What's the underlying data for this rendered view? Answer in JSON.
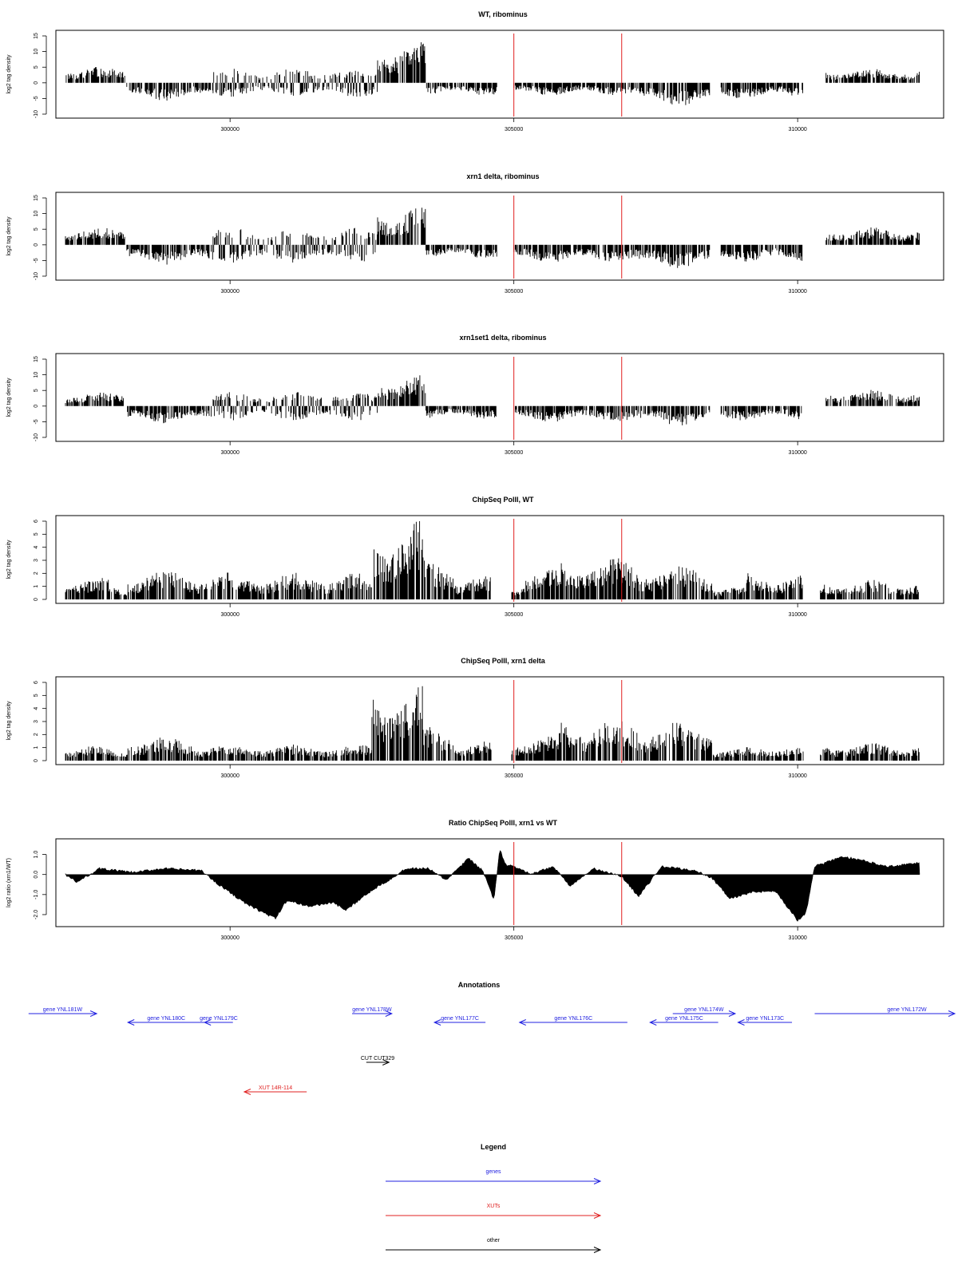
{
  "chart_data": [
    {
      "type": "bar",
      "title": "WT, ribominus",
      "ylabel": "log2 tag density",
      "xlim": [
        297100,
        312150
      ],
      "ylim": [
        -10,
        15
      ],
      "yticks": [
        "-10",
        "-5",
        "0",
        "5",
        "10",
        "15"
      ],
      "xticks": [
        {
          "value": 300000,
          "label": "300000"
        },
        {
          "value": 305000,
          "label": "305000"
        },
        {
          "value": 310000,
          "label": "310000"
        }
      ],
      "vlines": [
        305000,
        306900
      ],
      "segments": [
        {
          "start": 297100,
          "end": 298150,
          "dir": 1,
          "amp": 4.5
        },
        {
          "start": 298180,
          "end": 299700,
          "dir": -1,
          "amp": 5
        },
        {
          "start": 299700,
          "end": 302600,
          "dir": 0,
          "amp": 4
        },
        {
          "start": 302600,
          "end": 303450,
          "dir": 1,
          "amp": 12
        },
        {
          "start": 303450,
          "end": 304700,
          "dir": -1,
          "amp": 3.5
        },
        {
          "start": 305000,
          "end": 307200,
          "dir": -1,
          "amp": 3.5
        },
        {
          "start": 307200,
          "end": 308450,
          "dir": -1,
          "amp": 6.5
        },
        {
          "start": 308650,
          "end": 310100,
          "dir": -1,
          "amp": 4.5
        },
        {
          "start": 310500,
          "end": 312150,
          "dir": 1,
          "amp": 4
        }
      ]
    },
    {
      "type": "bar",
      "title": "xrn1 delta, ribominus",
      "ylabel": "log2 tag density",
      "xlim": [
        297100,
        312150
      ],
      "ylim": [
        -10,
        15
      ],
      "yticks": [
        "-10",
        "-5",
        "0",
        "5",
        "10",
        "15"
      ],
      "xticks": [
        {
          "value": 300000,
          "label": "300000"
        },
        {
          "value": 305000,
          "label": "305000"
        },
        {
          "value": 310000,
          "label": "310000"
        }
      ],
      "vlines": [
        305000,
        306900
      ],
      "segments": [
        {
          "start": 297100,
          "end": 298150,
          "dir": 1,
          "amp": 5
        },
        {
          "start": 298180,
          "end": 299700,
          "dir": -1,
          "amp": 5.5
        },
        {
          "start": 299700,
          "end": 302600,
          "dir": 0,
          "amp": 5
        },
        {
          "start": 302600,
          "end": 303450,
          "dir": 1,
          "amp": 11
        },
        {
          "start": 303450,
          "end": 304700,
          "dir": -1,
          "amp": 4
        },
        {
          "start": 305000,
          "end": 307200,
          "dir": -1,
          "amp": 5
        },
        {
          "start": 307200,
          "end": 308450,
          "dir": -1,
          "amp": 6.5
        },
        {
          "start": 308650,
          "end": 310100,
          "dir": -1,
          "amp": 5
        },
        {
          "start": 310500,
          "end": 312150,
          "dir": 1,
          "amp": 5
        }
      ]
    },
    {
      "type": "bar",
      "title": "xrn1set1 delta, ribominus",
      "ylabel": "log2 tag density",
      "xlim": [
        297100,
        312150
      ],
      "ylim": [
        -10,
        15
      ],
      "yticks": [
        "-10",
        "-5",
        "0",
        "5",
        "10",
        "15"
      ],
      "xticks": [
        {
          "value": 300000,
          "label": "300000"
        },
        {
          "value": 305000,
          "label": "305000"
        },
        {
          "value": 310000,
          "label": "310000"
        }
      ],
      "vlines": [
        305000,
        306900
      ],
      "segments": [
        {
          "start": 297100,
          "end": 298150,
          "dir": 1,
          "amp": 4
        },
        {
          "start": 298180,
          "end": 299700,
          "dir": -1,
          "amp": 5
        },
        {
          "start": 299700,
          "end": 302600,
          "dir": 0,
          "amp": 4
        },
        {
          "start": 302600,
          "end": 303450,
          "dir": 1,
          "amp": 9
        },
        {
          "start": 303450,
          "end": 304700,
          "dir": -1,
          "amp": 3.5
        },
        {
          "start": 305000,
          "end": 307200,
          "dir": -1,
          "amp": 4.5
        },
        {
          "start": 307200,
          "end": 308450,
          "dir": -1,
          "amp": 5.5
        },
        {
          "start": 308650,
          "end": 310100,
          "dir": -1,
          "amp": 4
        },
        {
          "start": 310500,
          "end": 312150,
          "dir": 1,
          "amp": 4.5
        }
      ]
    },
    {
      "type": "bar",
      "title": "ChipSeq PolII, WT",
      "ylabel": "log2 tag density",
      "xlim": [
        297100,
        312150
      ],
      "ylim": [
        0,
        6
      ],
      "yticks": [
        "0",
        "1",
        "2",
        "3",
        "4",
        "5",
        "6"
      ],
      "xticks": [
        {
          "value": 300000,
          "label": "300000"
        },
        {
          "value": 305000,
          "label": "305000"
        },
        {
          "value": 310000,
          "label": "310000"
        }
      ],
      "vlines": [
        305000,
        306900
      ],
      "segments": [
        {
          "start": 297100,
          "end": 297900,
          "dir": 1,
          "amp": 1.5
        },
        {
          "start": 297900,
          "end": 298200,
          "dir": 1,
          "amp": 0.9
        },
        {
          "start": 298200,
          "end": 299400,
          "dir": 1,
          "amp": 2
        },
        {
          "start": 299400,
          "end": 302500,
          "dir": 1,
          "amp": 1.8
        },
        {
          "start": 302500,
          "end": 303400,
          "dir": 1,
          "amp": 5.4
        },
        {
          "start": 303400,
          "end": 303950,
          "dir": 1,
          "amp": 2.8
        },
        {
          "start": 303950,
          "end": 304600,
          "dir": 1,
          "amp": 1.6
        },
        {
          "start": 304950,
          "end": 305200,
          "dir": 1,
          "amp": 1.2
        },
        {
          "start": 305200,
          "end": 305800,
          "dir": 1,
          "amp": 2
        },
        {
          "start": 305800,
          "end": 307200,
          "dir": 1,
          "amp": 2.8
        },
        {
          "start": 307200,
          "end": 308500,
          "dir": 1,
          "amp": 2.4
        },
        {
          "start": 308500,
          "end": 309100,
          "dir": 1,
          "amp": 0.9
        },
        {
          "start": 309100,
          "end": 310100,
          "dir": 1,
          "amp": 1.8
        },
        {
          "start": 310400,
          "end": 312150,
          "dir": 1,
          "amp": 1.3
        }
      ]
    },
    {
      "type": "bar",
      "title": "ChipSeq PolII, xrn1 delta",
      "ylabel": "log2 tag density",
      "xlim": [
        297100,
        312150
      ],
      "ylim": [
        0,
        6
      ],
      "yticks": [
        "0",
        "1",
        "2",
        "3",
        "4",
        "5",
        "6"
      ],
      "xticks": [
        {
          "value": 300000,
          "label": "300000"
        },
        {
          "value": 305000,
          "label": "305000"
        },
        {
          "value": 310000,
          "label": "310000"
        }
      ],
      "vlines": [
        305000,
        306900
      ],
      "segments": [
        {
          "start": 297100,
          "end": 297900,
          "dir": 1,
          "amp": 1.1
        },
        {
          "start": 297900,
          "end": 298200,
          "dir": 1,
          "amp": 0.7
        },
        {
          "start": 298200,
          "end": 299400,
          "dir": 1,
          "amp": 1.6
        },
        {
          "start": 299400,
          "end": 302500,
          "dir": 1,
          "amp": 1.1
        },
        {
          "start": 302500,
          "end": 303400,
          "dir": 1,
          "amp": 5.2
        },
        {
          "start": 303400,
          "end": 303950,
          "dir": 1,
          "amp": 2.4
        },
        {
          "start": 303950,
          "end": 304600,
          "dir": 1,
          "amp": 1.3
        },
        {
          "start": 304950,
          "end": 305800,
          "dir": 1,
          "amp": 1.6
        },
        {
          "start": 305800,
          "end": 307200,
          "dir": 1,
          "amp": 2.9
        },
        {
          "start": 307200,
          "end": 308500,
          "dir": 1,
          "amp": 2.7
        },
        {
          "start": 308500,
          "end": 309100,
          "dir": 1,
          "amp": 0.8
        },
        {
          "start": 309100,
          "end": 310100,
          "dir": 1,
          "amp": 1.1
        },
        {
          "start": 310400,
          "end": 312150,
          "dir": 1,
          "amp": 1.2
        }
      ]
    },
    {
      "type": "area",
      "title": "Ratio ChipSeq PolII, xrn1 vs WT",
      "ylabel": "log2 ratio (xrn1/WT)",
      "xlim": [
        297100,
        312150
      ],
      "ylim": [
        -2.4,
        1.5
      ],
      "yticks": [
        "-2.0",
        "-1.0",
        "0.0",
        "1.0"
      ],
      "xticks": [
        {
          "value": 300000,
          "label": "300000"
        },
        {
          "value": 305000,
          "label": "305000"
        },
        {
          "value": 310000,
          "label": "310000"
        }
      ],
      "vlines": [
        305000,
        306900
      ],
      "ratio": [
        [
          297100,
          0
        ],
        [
          297300,
          -0.4
        ],
        [
          297700,
          0.3
        ],
        [
          298300,
          0.1
        ],
        [
          298800,
          0.3
        ],
        [
          299500,
          0.2
        ],
        [
          299700,
          -0.3
        ],
        [
          300300,
          -1.5
        ],
        [
          300800,
          -2.2
        ],
        [
          301000,
          -1.3
        ],
        [
          301400,
          -1.6
        ],
        [
          301800,
          -1.4
        ],
        [
          302050,
          -1.8
        ],
        [
          302300,
          -1.2
        ],
        [
          302600,
          -0.6
        ],
        [
          302900,
          -0.1
        ],
        [
          303100,
          0.3
        ],
        [
          303500,
          0.3
        ],
        [
          303800,
          -0.3
        ],
        [
          304200,
          0.8
        ],
        [
          304450,
          0.2
        ],
        [
          304650,
          -1.3
        ],
        [
          304750,
          1.3
        ],
        [
          304850,
          0.5
        ],
        [
          305100,
          0.3
        ],
        [
          305300,
          0
        ],
        [
          305700,
          0.4
        ],
        [
          306000,
          -0.6
        ],
        [
          306400,
          0.3
        ],
        [
          306900,
          -0.1
        ],
        [
          307200,
          -1.1
        ],
        [
          307600,
          0.4
        ],
        [
          308200,
          0.2
        ],
        [
          308500,
          -0.2
        ],
        [
          308800,
          -1.2
        ],
        [
          309200,
          -0.9
        ],
        [
          309600,
          -0.8
        ],
        [
          310000,
          -2.3
        ],
        [
          310150,
          -1.9
        ],
        [
          310300,
          0.4
        ],
        [
          310800,
          0.9
        ],
        [
          311300,
          0.6
        ],
        [
          311600,
          0.4
        ],
        [
          312150,
          0.6
        ]
      ]
    }
  ],
  "annotations": {
    "title": "Annotations",
    "features": [
      {
        "label": "gene YNL181W",
        "start": 296450,
        "end": 297650,
        "strand": "+",
        "type": "gene",
        "row": 0
      },
      {
        "label": "gene YNL180C",
        "start": 298200,
        "end": 299550,
        "strand": "-",
        "type": "gene",
        "row": 1
      },
      {
        "label": "gene YNL179C",
        "start": 299550,
        "end": 300050,
        "strand": "-",
        "type": "gene",
        "row": 1
      },
      {
        "label": "gene YNL178W",
        "start": 302150,
        "end": 302850,
        "strand": "+",
        "type": "gene",
        "row": 0
      },
      {
        "label": "gene YNL177C",
        "start": 303600,
        "end": 304500,
        "strand": "-",
        "type": "gene",
        "row": 1
      },
      {
        "label": "gene YNL176C",
        "start": 305100,
        "end": 307000,
        "strand": "-",
        "type": "gene",
        "row": 1
      },
      {
        "label": "gene YNL175C",
        "start": 307400,
        "end": 308600,
        "strand": "-",
        "type": "gene",
        "row": 1
      },
      {
        "label": "gene YNL174W",
        "start": 307800,
        "end": 308900,
        "strand": "+",
        "type": "gene",
        "row": 0
      },
      {
        "label": "gene YNL173C",
        "start": 308950,
        "end": 309900,
        "strand": "-",
        "type": "gene",
        "row": 1
      },
      {
        "label": "gene YNL172W",
        "start": 310300,
        "end": 313850,
        "strand": "+",
        "type": "gene",
        "row": 0
      },
      {
        "label": "CUT CUT329",
        "start": 302400,
        "end": 302800,
        "strand": "+",
        "type": "other",
        "row": 2
      },
      {
        "label": "XUT 14R-114",
        "start": 300250,
        "end": 301350,
        "strand": "-",
        "type": "XUT",
        "row": 3
      }
    ]
  },
  "legend": {
    "title": "Legend",
    "entries": [
      {
        "label": "genes",
        "type": "gene"
      },
      {
        "label": "XUTs",
        "type": "XUT"
      },
      {
        "label": "other",
        "type": "other"
      }
    ]
  },
  "colors": {
    "gene": "#2020e0",
    "XUT": "#e02020",
    "other": "#000000",
    "marker": "#e02020",
    "bars": "#000000"
  }
}
